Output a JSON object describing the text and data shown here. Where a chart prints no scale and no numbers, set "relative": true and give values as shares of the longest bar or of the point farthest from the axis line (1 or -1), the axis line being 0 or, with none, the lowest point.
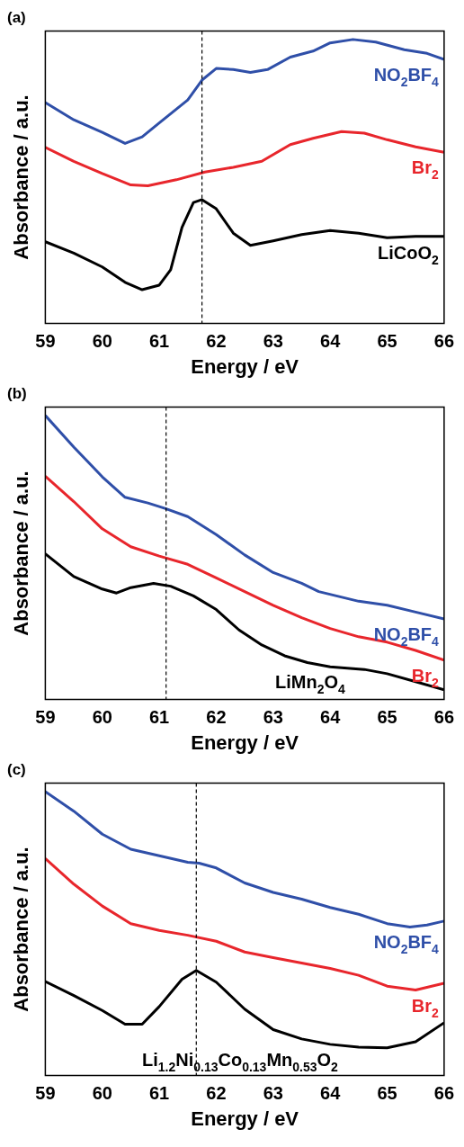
{
  "chart_data": [
    {
      "type": "line",
      "title": "(a)",
      "xlabel": "Energy / eV",
      "ylabel": "Absorbance / a.u.",
      "relative": true,
      "xlim": [
        59,
        66
      ],
      "xticks": [
        59,
        60,
        61,
        62,
        63,
        64,
        65,
        66
      ],
      "ref_lines": [
        {
          "axis": "x",
          "value": 61.75,
          "line_style": "dashed",
          "color": "#000000"
        }
      ],
      "series": [
        {
          "name": "NO$_{2}$BF$_{4}$",
          "color": "#2f4fa8",
          "x": [
            59,
            59.5,
            60,
            60.4,
            60.7,
            61,
            61.5,
            61.75,
            62,
            62.3,
            62.6,
            62.9,
            63.3,
            63.7,
            64,
            64.4,
            64.8,
            65.3,
            65.7,
            66
          ],
          "values": [
            0.778,
            0.717,
            0.673,
            0.634,
            0.657,
            0.706,
            0.787,
            0.857,
            0.898,
            0.894,
            0.884,
            0.894,
            0.938,
            0.959,
            0.988,
            1,
            0.991,
            0.964,
            0.951,
            0.93
          ]
        },
        {
          "name": "Br$_{2}$",
          "color": "#e8262c",
          "x": [
            59,
            59.5,
            60,
            60.5,
            60.8,
            61.3,
            61.8,
            62.3,
            62.8,
            63.3,
            63.7,
            64.2,
            64.6,
            65,
            65.5,
            66
          ],
          "values": [
            0.62,
            0.571,
            0.528,
            0.488,
            0.485,
            0.506,
            0.533,
            0.55,
            0.571,
            0.63,
            0.652,
            0.676,
            0.67,
            0.647,
            0.622,
            0.603
          ]
        },
        {
          "name": "LiCoO$_{2}$",
          "color": "#000000",
          "x": [
            59,
            59.5,
            60,
            60.4,
            60.7,
            61,
            61.2,
            61.4,
            61.6,
            61.75,
            62,
            62.3,
            62.6,
            63,
            63.5,
            64,
            64.5,
            65,
            65.5,
            66
          ],
          "values": [
            0.288,
            0.248,
            0.199,
            0.145,
            0.119,
            0.135,
            0.189,
            0.339,
            0.426,
            0.436,
            0.404,
            0.318,
            0.275,
            0.291,
            0.313,
            0.327,
            0.318,
            0.302,
            0.307,
            0.307
          ]
        }
      ]
    },
    {
      "type": "line",
      "title": "(b)",
      "xlabel": "Energy / eV",
      "ylabel": "Absorbance / a.u.",
      "relative": true,
      "xlim": [
        59,
        66
      ],
      "xticks": [
        59,
        60,
        61,
        62,
        63,
        64,
        65,
        66
      ],
      "ref_lines": [
        {
          "axis": "x",
          "value": 61.12,
          "line_style": "dashed",
          "color": "#000000"
        }
      ],
      "series": [
        {
          "name": "NO$_{2}$BF$_{4}$",
          "color": "#2f4fa8",
          "x": [
            59,
            59.5,
            60,
            60.4,
            60.8,
            61.1,
            61.5,
            62,
            62.5,
            63,
            63.5,
            63.8,
            64.5,
            65,
            65.5,
            66
          ],
          "values": [
            1,
            0.889,
            0.784,
            0.712,
            0.692,
            0.673,
            0.644,
            0.581,
            0.509,
            0.447,
            0.409,
            0.38,
            0.346,
            0.332,
            0.308,
            0.284
          ]
        },
        {
          "name": "Br$_{2}$",
          "color": "#e8262c",
          "x": [
            59,
            59.5,
            60,
            60.5,
            61,
            61.5,
            62,
            62.5,
            63,
            63.5,
            64,
            64.5,
            65,
            65.5,
            66
          ],
          "values": [
            0.786,
            0.697,
            0.601,
            0.538,
            0.505,
            0.476,
            0.428,
            0.38,
            0.332,
            0.288,
            0.25,
            0.221,
            0.202,
            0.173,
            0.139
          ]
        },
        {
          "name": "LiMn$_{2}$O$_{4}$",
          "color": "#000000",
          "x": [
            59,
            59.5,
            60,
            60.25,
            60.5,
            60.9,
            61.2,
            61.6,
            62,
            62.4,
            62.8,
            63.2,
            63.6,
            64,
            64.6,
            65,
            65.5,
            66
          ],
          "values": [
            0.513,
            0.433,
            0.389,
            0.375,
            0.394,
            0.409,
            0.399,
            0.365,
            0.317,
            0.245,
            0.192,
            0.154,
            0.13,
            0.115,
            0.106,
            0.091,
            0.063,
            0.034
          ]
        }
      ]
    },
    {
      "type": "line",
      "title": "(c)",
      "xlabel": "Energy / eV",
      "ylabel": "Absorbance / a.u.",
      "relative": true,
      "xlim": [
        59,
        66
      ],
      "xticks": [
        59,
        60,
        61,
        62,
        63,
        64,
        65,
        66
      ],
      "ref_lines": [
        {
          "axis": "x",
          "value": 61.65,
          "line_style": "dashed",
          "color": "#000000"
        }
      ],
      "series": [
        {
          "name": "NO$_{2}$BF$_{4}$",
          "color": "#2f4fa8",
          "x": [
            59,
            59.5,
            60,
            60.5,
            61,
            61.5,
            61.7,
            62,
            62.5,
            63,
            63.5,
            64,
            64.5,
            65,
            65.4,
            65.7,
            66
          ],
          "values": [
            1,
            0.931,
            0.85,
            0.797,
            0.774,
            0.751,
            0.748,
            0.731,
            0.678,
            0.645,
            0.621,
            0.592,
            0.568,
            0.535,
            0.523,
            0.53,
            0.544
          ]
        },
        {
          "name": "Br$_{2}$",
          "color": "#e8262c",
          "x": [
            59,
            59.5,
            60,
            60.5,
            61,
            61.5,
            62,
            62.5,
            63,
            63.5,
            64,
            64.5,
            65,
            65.5,
            66
          ],
          "values": [
            0.764,
            0.674,
            0.597,
            0.535,
            0.511,
            0.494,
            0.473,
            0.435,
            0.415,
            0.396,
            0.377,
            0.353,
            0.315,
            0.301,
            0.325
          ]
        },
        {
          "name": "Li$_{1.2}$Ni$_{0.13}$Co$_{0.13}$Mn$_{0.53}$O$_{2}$",
          "color": "#000000",
          "x": [
            59,
            59.5,
            60,
            60.4,
            60.7,
            61,
            61.4,
            61.65,
            62,
            62.5,
            63,
            63.5,
            64,
            64.5,
            65,
            65.5,
            66
          ],
          "values": [
            0.331,
            0.282,
            0.229,
            0.181,
            0.181,
            0.243,
            0.339,
            0.37,
            0.329,
            0.234,
            0.162,
            0.129,
            0.11,
            0.1,
            0.098,
            0.119,
            0.186
          ]
        }
      ]
    }
  ]
}
